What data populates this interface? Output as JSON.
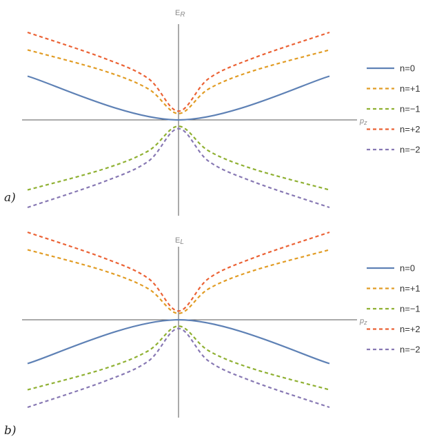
{
  "chart_data": [
    {
      "panel_label": "a)",
      "type": "line",
      "ylabel_main": "E",
      "ylabel_sub": "R",
      "xlabel": "p",
      "xlabel_sub": "z",
      "xlim": [
        -1,
        1
      ],
      "ylim": [
        -1.25,
        1.25
      ],
      "grid": false,
      "legend_position": "right",
      "series": [
        {
          "name": "n=0",
          "label": "n=0",
          "color": "#5e81b5",
          "dash": "solid",
          "x": [
            -1,
            0,
            1
          ],
          "y": [
            0.55,
            0,
            0.55
          ]
        },
        {
          "name": "n=+1",
          "label": "n=+1",
          "color": "#e19c24",
          "dash": "dashed",
          "x": [
            -1,
            -0.5,
            -0.2,
            0,
            0.2,
            0.5,
            1
          ],
          "y": [
            0.88,
            0.62,
            0.39,
            0.08,
            0.39,
            0.62,
            0.88
          ]
        },
        {
          "name": "n=−1",
          "label": "n=−1",
          "color": "#8fb032",
          "dash": "dashed",
          "x": [
            -1,
            -0.5,
            -0.2,
            0,
            0.2,
            0.5,
            1
          ],
          "y": [
            -0.88,
            -0.62,
            -0.39,
            -0.08,
            -0.39,
            -0.62,
            -0.88
          ]
        },
        {
          "name": "n=+2",
          "label": "n=+2",
          "color": "#eb6235",
          "dash": "dashed",
          "x": [
            -1,
            -0.5,
            -0.2,
            0,
            0.2,
            0.5,
            1
          ],
          "y": [
            1.1,
            0.78,
            0.52,
            0.11,
            0.52,
            0.78,
            1.1
          ]
        },
        {
          "name": "n=−2",
          "label": "n=−2",
          "color": "#8778b3",
          "dash": "dashed",
          "x": [
            -1,
            -0.5,
            -0.2,
            0,
            0.2,
            0.5,
            1
          ],
          "y": [
            -1.1,
            -0.78,
            -0.52,
            -0.11,
            -0.52,
            -0.78,
            -1.1
          ]
        }
      ]
    },
    {
      "panel_label": "b)",
      "type": "line",
      "ylabel_main": "E",
      "ylabel_sub": "L",
      "xlabel": "p",
      "xlabel_sub": "z",
      "xlim": [
        -1,
        1
      ],
      "ylim": [
        -1.25,
        1.25
      ],
      "grid": false,
      "legend_position": "right",
      "series": [
        {
          "name": "n=0",
          "label": "n=0",
          "color": "#5e81b5",
          "dash": "solid",
          "x": [
            -1,
            0,
            1
          ],
          "y": [
            -0.55,
            0,
            -0.55
          ]
        },
        {
          "name": "n=+1",
          "label": "n=+1",
          "color": "#e19c24",
          "dash": "dashed",
          "x": [
            -1,
            -0.5,
            -0.2,
            0,
            0.2,
            0.5,
            1
          ],
          "y": [
            0.88,
            0.62,
            0.39,
            0.08,
            0.39,
            0.62,
            0.88
          ]
        },
        {
          "name": "n=−1",
          "label": "n=−1",
          "color": "#8fb032",
          "dash": "dashed",
          "x": [
            -1,
            -0.5,
            -0.2,
            0,
            0.2,
            0.5,
            1
          ],
          "y": [
            -0.88,
            -0.62,
            -0.39,
            -0.08,
            -0.39,
            -0.62,
            -0.88
          ]
        },
        {
          "name": "n=+2",
          "label": "n=+2",
          "color": "#eb6235",
          "dash": "dashed",
          "x": [
            -1,
            -0.5,
            -0.2,
            0,
            0.2,
            0.5,
            1
          ],
          "y": [
            1.1,
            0.78,
            0.52,
            0.11,
            0.52,
            0.78,
            1.1
          ]
        },
        {
          "name": "n=−2",
          "label": "n=−2",
          "color": "#8778b3",
          "dash": "dashed",
          "x": [
            -1,
            -0.5,
            -0.2,
            0,
            0.2,
            0.5,
            1
          ],
          "y": [
            -1.1,
            -0.78,
            -0.52,
            -0.11,
            -0.52,
            -0.78,
            -1.1
          ]
        }
      ]
    }
  ]
}
